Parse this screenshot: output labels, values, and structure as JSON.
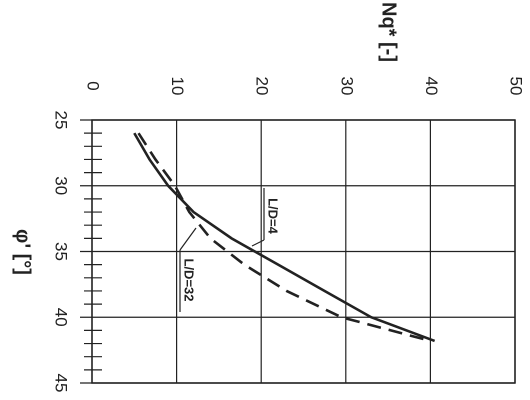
{
  "chart_data": {
    "type": "line",
    "x_label": "φ' [°]",
    "y_label": "Nq* [-]",
    "x": [
      26,
      28,
      30,
      32,
      34,
      36,
      38,
      40,
      41.8
    ],
    "series": [
      {
        "name": "L/D=4",
        "color": "#222222",
        "dash": "none",
        "values": [
          5,
          6.8,
          9,
          12,
          16.5,
          22,
          27.5,
          33,
          40.5
        ]
      },
      {
        "name": "L/D=32",
        "color": "#222222",
        "dash": "14 8",
        "values": [
          5.5,
          7.5,
          9.8,
          11.5,
          14,
          18,
          23,
          29.5,
          40
        ]
      }
    ],
    "xlim": [
      25,
      45
    ],
    "xticks": [
      25,
      30,
      35,
      40,
      45
    ],
    "xminorticks": [
      26,
      27,
      28,
      29,
      31,
      32,
      33,
      34,
      36,
      37,
      38,
      39,
      41,
      42,
      43,
      44
    ],
    "ylim": [
      0,
      50
    ],
    "yticks": [
      0,
      10,
      20,
      30,
      40,
      50
    ],
    "grid": true
  }
}
